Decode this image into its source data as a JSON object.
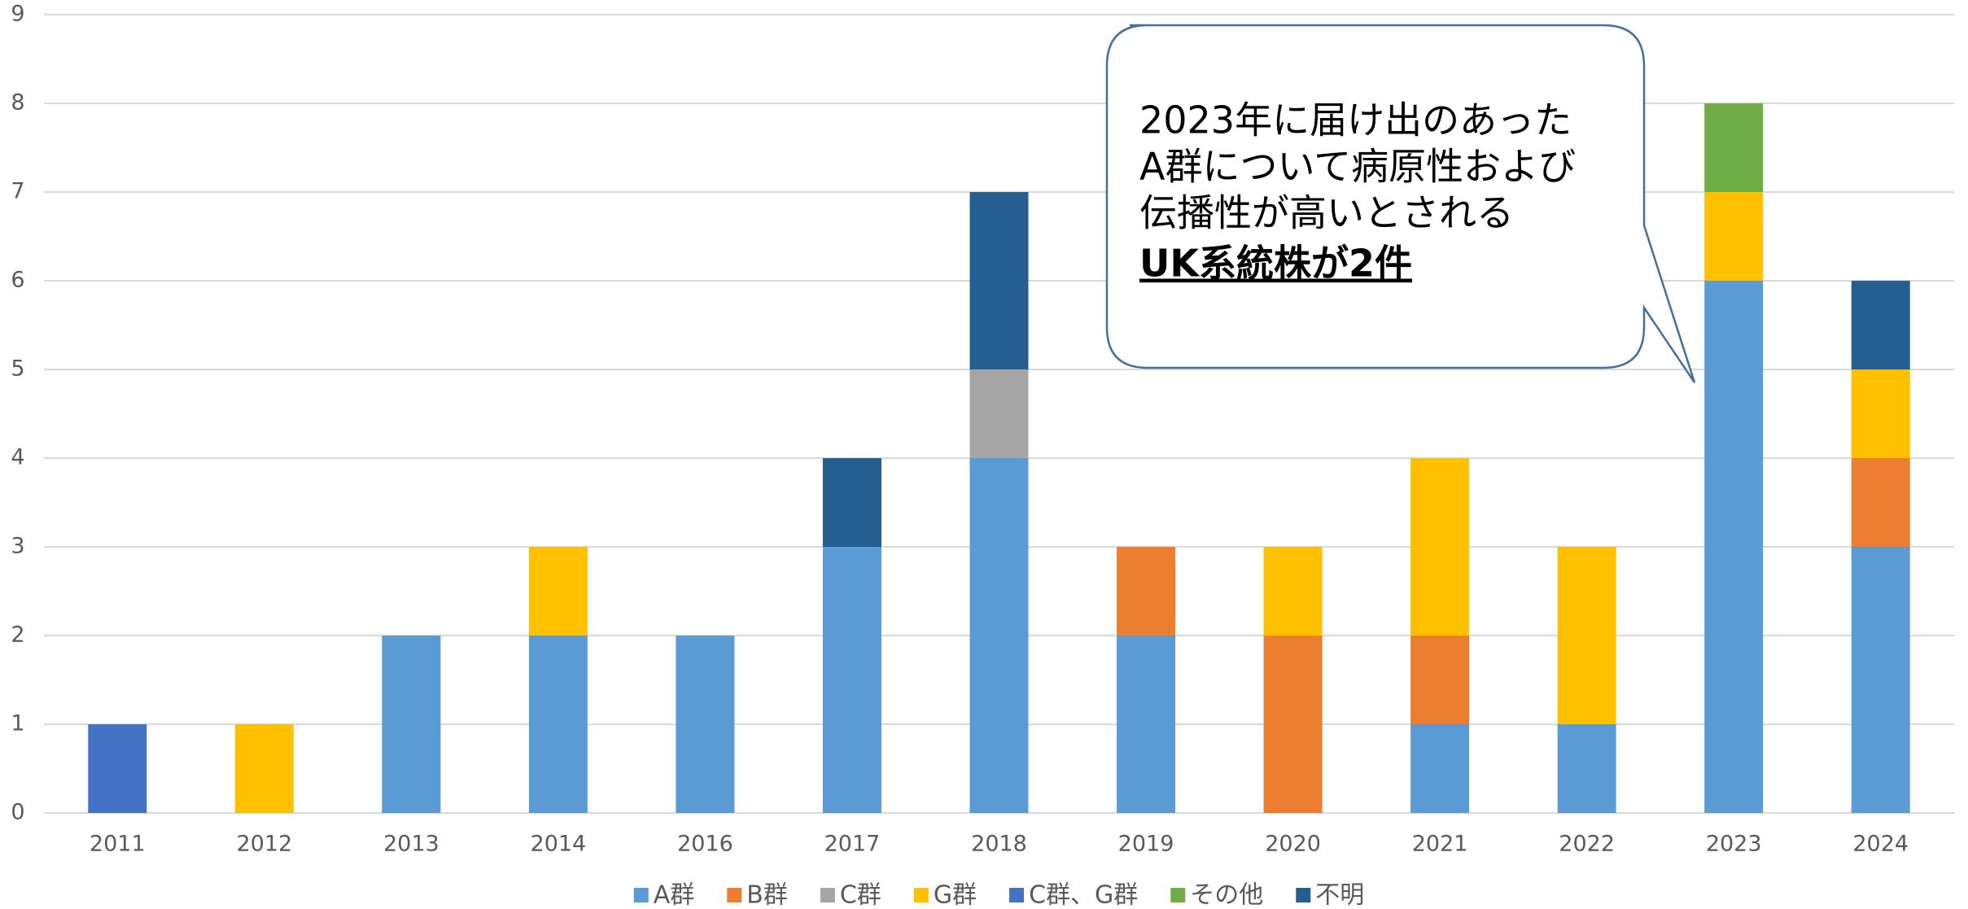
{
  "chart_data": {
    "type": "bar",
    "stacked": true,
    "categories": [
      "2011",
      "2012",
      "2013",
      "2014",
      "2016",
      "2017",
      "2018",
      "2019",
      "2020",
      "2021",
      "2022",
      "2023",
      "2024"
    ],
    "series": [
      {
        "name": "A群",
        "color": "#5b9bd5",
        "values": [
          0,
          0,
          2,
          2,
          2,
          3,
          4,
          2,
          0,
          1,
          1,
          6,
          3
        ]
      },
      {
        "name": "B群",
        "color": "#ed7d31",
        "values": [
          0,
          0,
          0,
          0,
          0,
          0,
          0,
          1,
          2,
          1,
          0,
          0,
          1
        ]
      },
      {
        "name": "C群",
        "color": "#a5a5a5",
        "values": [
          0,
          0,
          0,
          0,
          0,
          0,
          1,
          0,
          0,
          0,
          0,
          0,
          0
        ]
      },
      {
        "name": "G群",
        "color": "#ffc000",
        "values": [
          0,
          1,
          0,
          1,
          0,
          0,
          0,
          0,
          1,
          2,
          2,
          1,
          1
        ]
      },
      {
        "name": "C群、G群",
        "color": "#4472c4",
        "values": [
          1,
          0,
          0,
          0,
          0,
          0,
          0,
          0,
          0,
          0,
          0,
          0,
          0
        ]
      },
      {
        "name": "その他",
        "color": "#70ad47",
        "values": [
          0,
          0,
          0,
          0,
          0,
          0,
          0,
          0,
          0,
          0,
          0,
          1,
          0
        ]
      },
      {
        "name": "不明",
        "color": "#255e91",
        "values": [
          0,
          0,
          0,
          0,
          0,
          1,
          2,
          0,
          0,
          0,
          0,
          0,
          1
        ]
      }
    ],
    "ylim": [
      0,
      9
    ],
    "yticks": [
      0,
      1,
      2,
      3,
      4,
      5,
      6,
      7,
      8,
      9
    ],
    "grid": true,
    "legend": "bottom",
    "annotation": [
      "2023年に届け出のあった",
      "A群について病原性および",
      "伝播性が高いとされる",
      "UK系統株が2件"
    ]
  }
}
